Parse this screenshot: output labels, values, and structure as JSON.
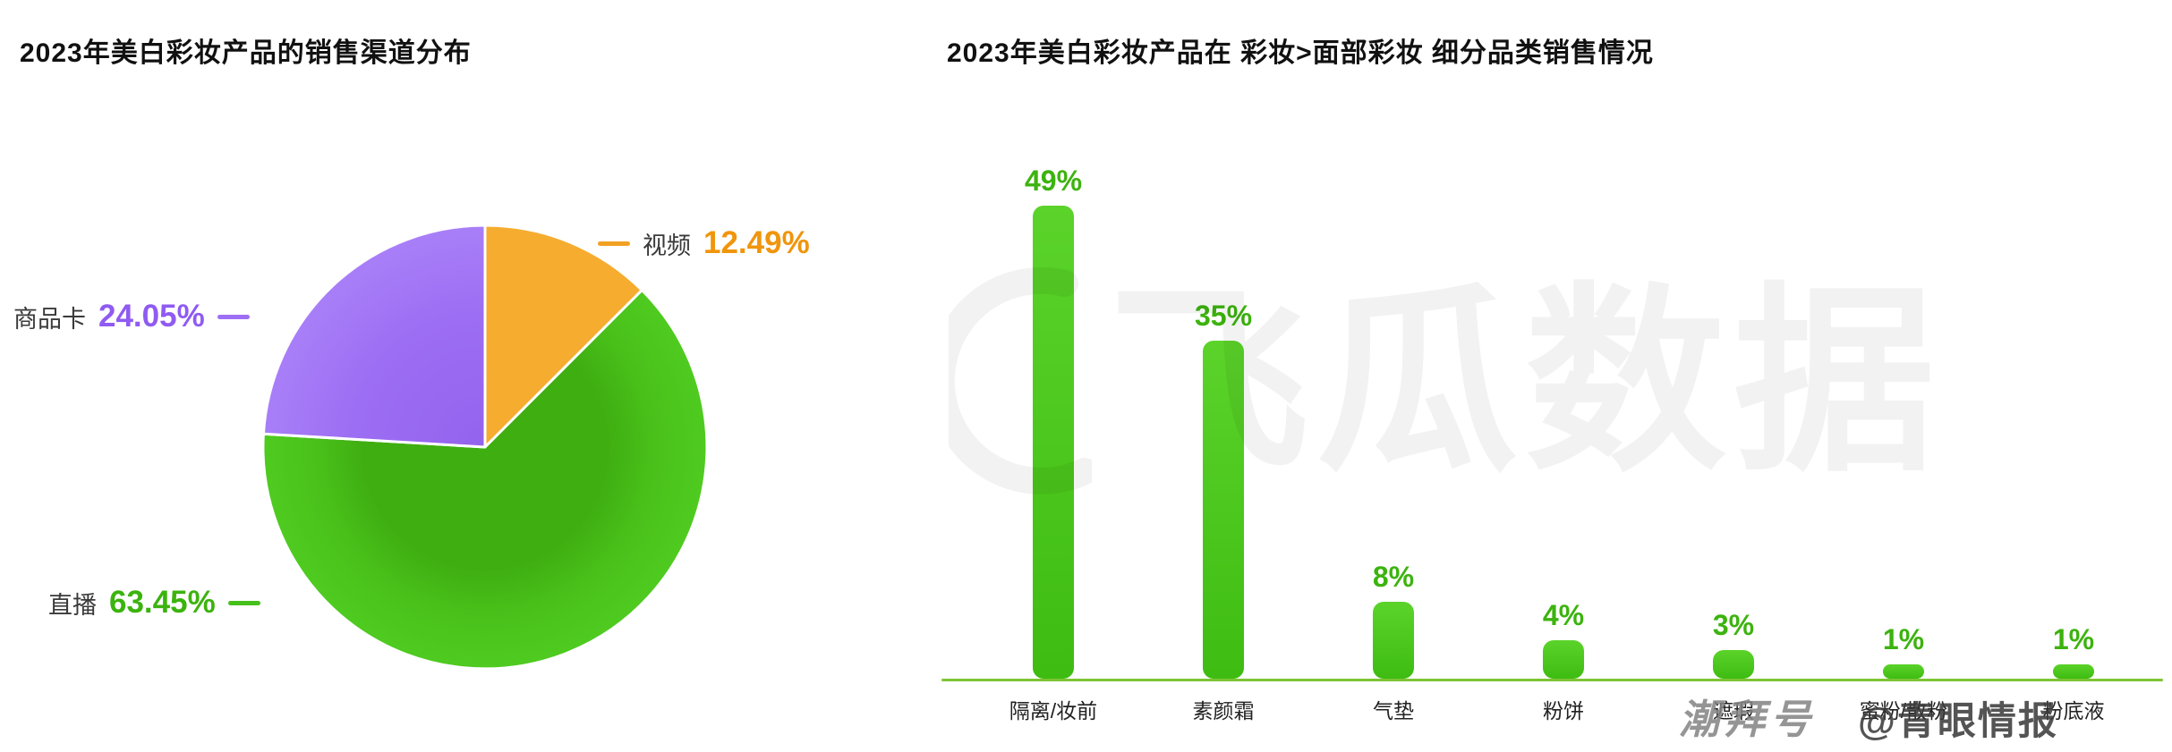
{
  "chart_data": [
    {
      "type": "pie",
      "title": "2023年美白彩妆产品的销售渠道分布",
      "start_angle_deg": 0,
      "direction": "clockwise",
      "legend_position": "callout-labels",
      "slices": [
        {
          "label": "视频",
          "value": 12.49,
          "display": "12.49%",
          "color": "#F6AC2F",
          "label_color": "#F0950C",
          "gradient_id": ""
        },
        {
          "label": "直播",
          "value": 63.45,
          "display": "63.45%",
          "color": "#4CC41E",
          "label_color": "#3CB30E",
          "gradient_id": "gradGreen"
        },
        {
          "label": "商品卡",
          "value": 24.05,
          "display": "24.05%",
          "color": "#A478F7",
          "label_color": "#8F5BF2",
          "gradient_id": "gradPurple"
        }
      ]
    },
    {
      "type": "bar",
      "title": "2023年美白彩妆产品在 彩妆>面部彩妆 细分品类销售情况",
      "categories": [
        "隔离/妆前",
        "素颜霜",
        "气垫",
        "粉饼",
        "遮瑕",
        "蜜粉/散粉",
        "粉底液"
      ],
      "values": [
        49,
        35,
        8,
        4,
        3,
        1,
        1
      ],
      "value_labels": [
        "49%",
        "35%",
        "8%",
        "4%",
        "3%",
        "1%",
        "1%"
      ],
      "bar_color_top": "#5BD32A",
      "bar_color_bottom": "#3EBC11",
      "value_label_color": "#3CB30E",
      "axis_line_color": "#7CC433",
      "ylim": [
        0,
        55
      ],
      "grid": false,
      "legend_position": "none"
    }
  ],
  "watermarks": {
    "brand": "飞瓜数据",
    "account_left": "潮拜号",
    "account_right": "@青眼情报"
  }
}
